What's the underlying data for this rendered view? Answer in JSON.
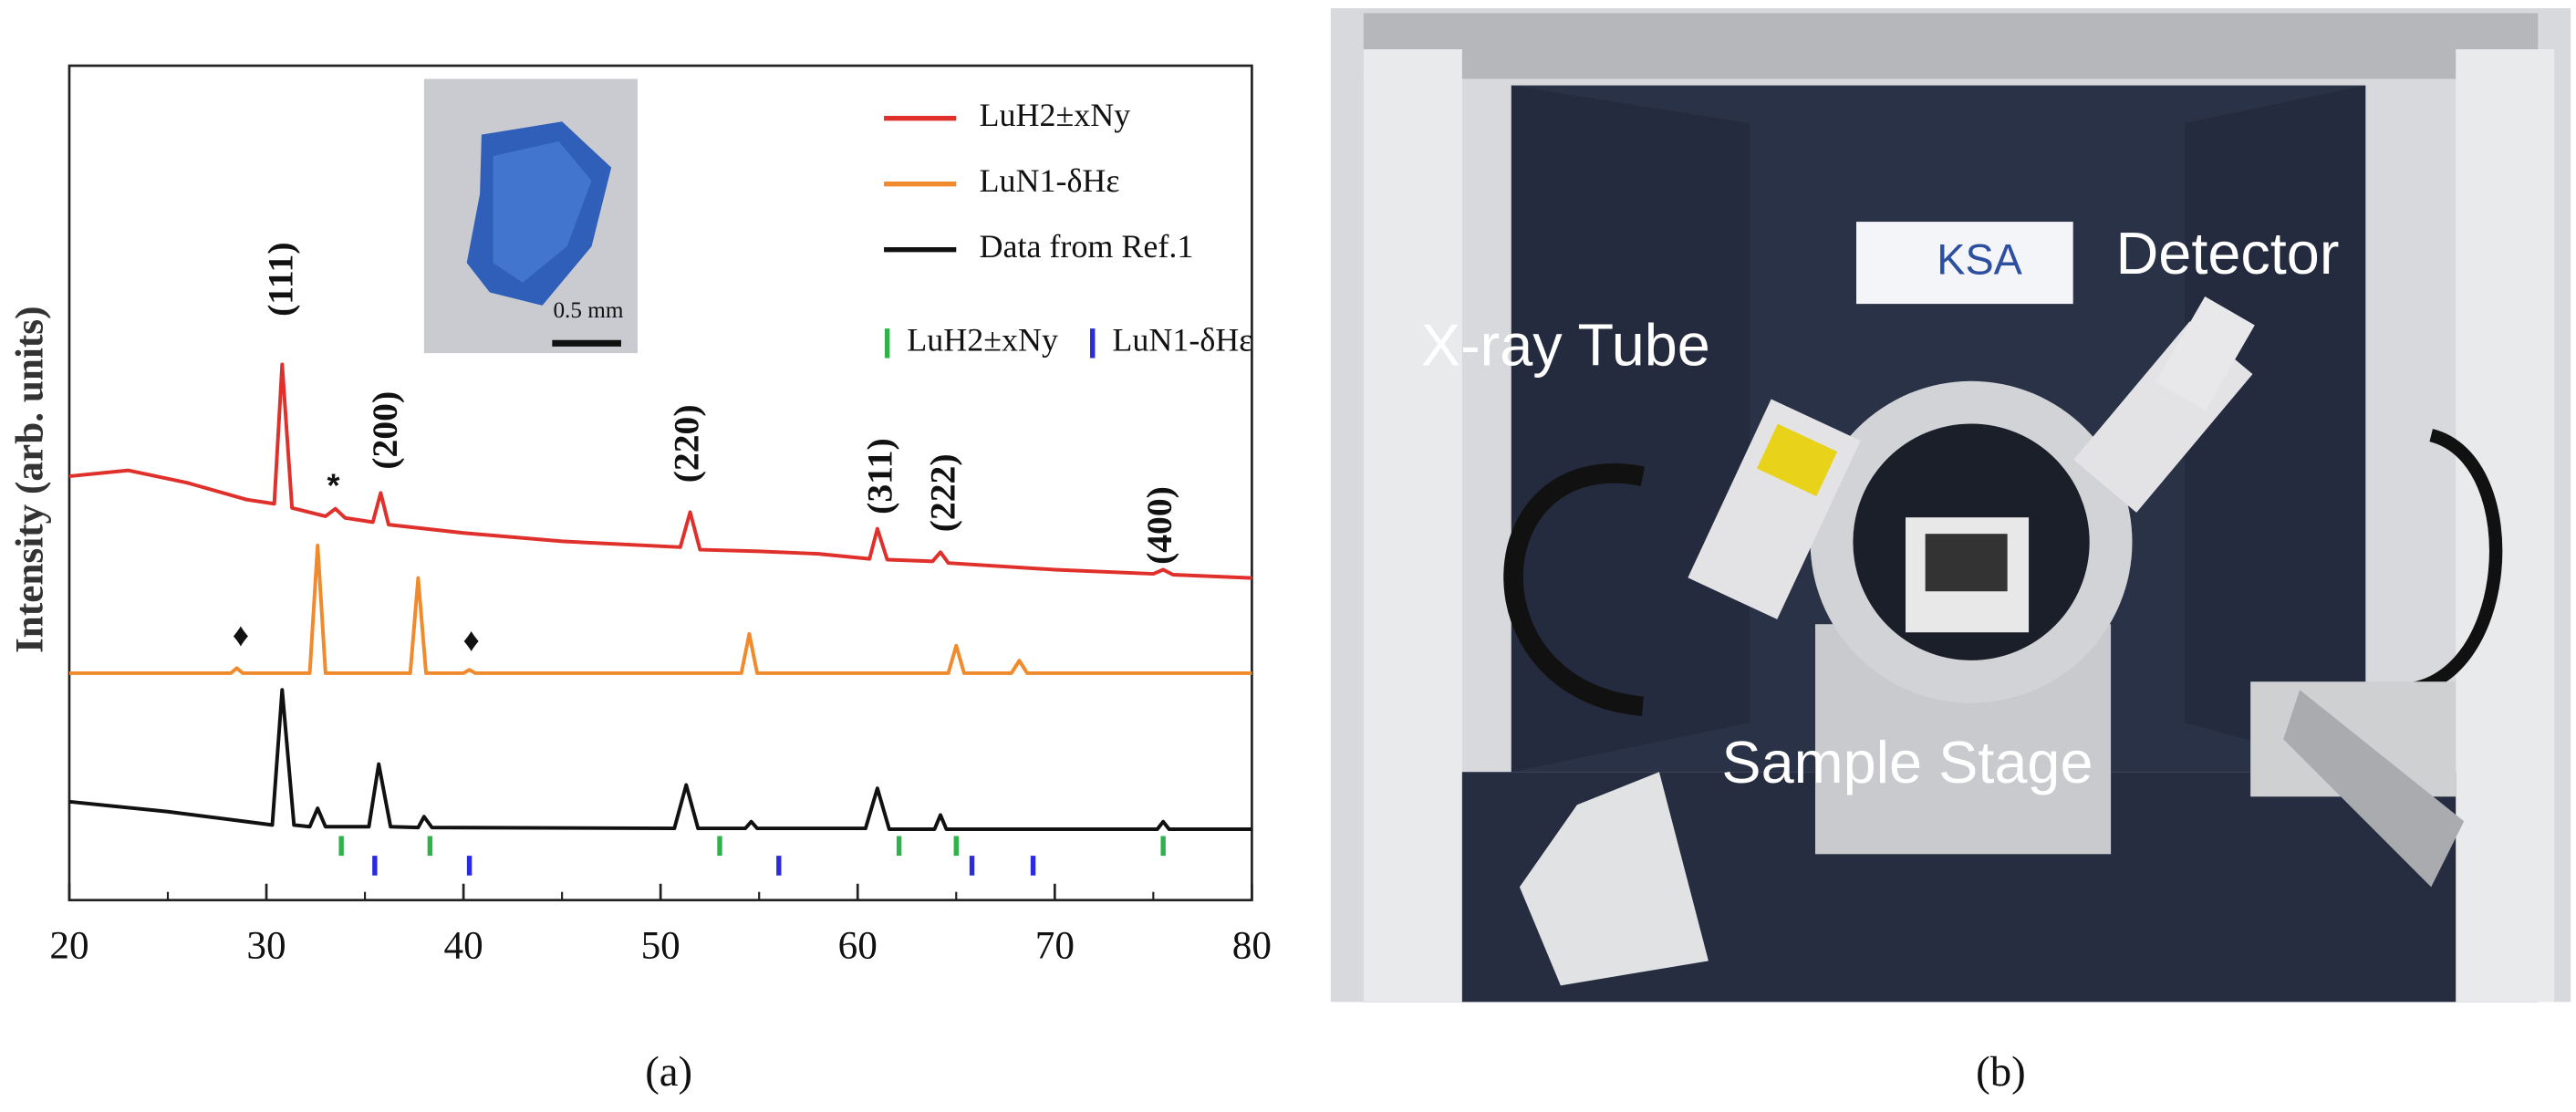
{
  "chart_data": {
    "type": "line",
    "ylabel": "Intensity (arb. units)",
    "xlim": [
      20,
      80
    ],
    "xticks": [
      20,
      30,
      40,
      50,
      60,
      70,
      80
    ],
    "ylim": [
      0,
      100
    ],
    "series": [
      {
        "name": "LuH2±xNy",
        "color": "#e0302c",
        "x": [
          20,
          23,
          26,
          29,
          30.4,
          30.8,
          31.3,
          33,
          33.5,
          34,
          35.4,
          35.8,
          36.2,
          40,
          45,
          51,
          51.5,
          52,
          55,
          58,
          60.6,
          61,
          61.5,
          63.8,
          64.2,
          64.6,
          70,
          75,
          75.5,
          76,
          80
        ],
        "values": [
          50.8,
          51.5,
          50,
          48,
          47.5,
          64.2,
          47,
          46,
          46.9,
          45.8,
          45.3,
          48.8,
          45,
          44,
          43,
          42.3,
          46.5,
          42,
          41.8,
          41.5,
          40.9,
          44.5,
          40.8,
          40.6,
          41.7,
          40.4,
          39.6,
          39.1,
          39.6,
          39,
          38.6
        ]
      },
      {
        "name": "LuN1-δHε",
        "color": "#f08a2c",
        "x": [
          20,
          28.2,
          28.5,
          28.8,
          32.2,
          32.6,
          33,
          37.3,
          37.7,
          38.1,
          40,
          40.3,
          40.6,
          54.1,
          54.5,
          54.9,
          64.6,
          65,
          65.4,
          67.8,
          68.2,
          68.6,
          80
        ],
        "values": [
          27.2,
          27.2,
          27.8,
          27.2,
          27.2,
          42.5,
          27.2,
          27.2,
          38.6,
          27.2,
          27.2,
          27.6,
          27.2,
          27.2,
          31.9,
          27.2,
          27.2,
          30.5,
          27.2,
          27.2,
          28.7,
          27.2,
          27.2
        ]
      },
      {
        "name": "Data from Ref.1",
        "color": "#111111",
        "x": [
          20,
          25,
          29,
          30.3,
          30.8,
          31.4,
          32.2,
          32.6,
          33,
          35.2,
          35.7,
          36.3,
          37.7,
          38,
          38.4,
          50.7,
          51.3,
          51.9,
          54.3,
          54.6,
          54.9,
          60.4,
          61,
          61.6,
          63.9,
          64.2,
          64.5,
          75.2,
          75.5,
          75.8,
          80
        ],
        "values": [
          11.8,
          10.6,
          9.4,
          9,
          25.2,
          9,
          8.8,
          11,
          8.8,
          8.8,
          16.3,
          8.8,
          8.7,
          10,
          8.7,
          8.6,
          13.8,
          8.6,
          8.6,
          9.4,
          8.6,
          8.6,
          13.4,
          8.5,
          8.5,
          10.2,
          8.5,
          8.5,
          9.4,
          8.5,
          8.5
        ]
      }
    ],
    "reflections": [
      {
        "name": "LuH2±xNy",
        "color": "#2db34a",
        "x": [
          33.8,
          38.3,
          53,
          62.1,
          65,
          75.5
        ]
      },
      {
        "name": "LuN1-δHε",
        "color": "#2a2ae0",
        "x": [
          35.5,
          40.3,
          56,
          65.8,
          68.9
        ]
      }
    ],
    "annotations": [
      {
        "text": "(111)",
        "x": 30.9,
        "y": 74.4
      },
      {
        "text": "(200)",
        "x": 36.2,
        "y": 56.3
      },
      {
        "text": "(220)",
        "x": 51.5,
        "y": 54.7
      },
      {
        "text": "(311)",
        "x": 61.3,
        "y": 50.8
      },
      {
        "text": "(222)",
        "x": 64.5,
        "y": 48.8
      },
      {
        "text": "(400)",
        "x": 75.5,
        "y": 44.9
      },
      {
        "text": "*",
        "x": 33.4,
        "y": 49.4
      },
      {
        "text": "♦",
        "x": 28.7,
        "y": 31.5
      },
      {
        "text": "♦",
        "x": 40.4,
        "y": 30.9
      }
    ],
    "inset": {
      "scale_label": "0.5 mm"
    }
  },
  "photo": {
    "labels": [
      "X-ray Tube",
      "Detector",
      "Sample Stage"
    ],
    "logo": "KSA"
  },
  "captions": [
    "(a)",
    "(b)"
  ]
}
